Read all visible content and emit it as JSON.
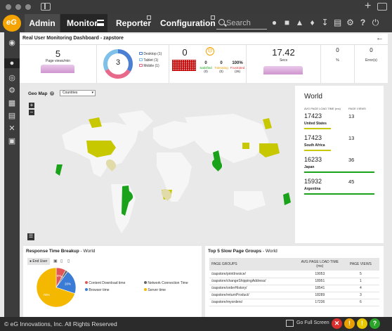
{
  "nav": {
    "admin": "Admin",
    "monitor": "Monitor",
    "reporter": "Reporter",
    "configuration": "Configuration",
    "search_placeholder": "Search"
  },
  "dashboard": {
    "title": "Real User Monitoring Dashboard - zapstore"
  },
  "kpis": {
    "page_views": {
      "value": "5",
      "label": "Page views/min"
    },
    "donut_center": "3",
    "devices": [
      {
        "label": "Desktop",
        "count": "(1)"
      },
      {
        "label": "Tablet",
        "count": "(1)"
      },
      {
        "label": "Mobile",
        "count": "(1)"
      }
    ],
    "apdex": {
      "value": "0"
    },
    "satisfaction": [
      {
        "pct": "0",
        "label": "Satisfied",
        "count": "(0)"
      },
      {
        "pct": "0",
        "label": "Tolerating",
        "count": "(0)"
      },
      {
        "pct": "100%",
        "label": "Frustrated",
        "count": "(26)"
      }
    ],
    "secs": {
      "value": "17.42",
      "label": "Secs"
    },
    "percent": {
      "value": "0",
      "label": "%"
    },
    "errors": {
      "value": "0",
      "label": "Error(s)"
    }
  },
  "geo": {
    "title": "Geo Map",
    "select_value": "Countries",
    "zoom_in": "+",
    "zoom_out": "−"
  },
  "world": {
    "title": "World",
    "col1": "AVG PAGE LOAD TIME (ms)",
    "col2": "PAGE VIEWS",
    "rows": [
      {
        "time": "17423",
        "views": "13",
        "country": "United States",
        "color": "#c8c800"
      },
      {
        "time": "17423",
        "views": "13",
        "country": "South Africa",
        "color": "#c8c800"
      },
      {
        "time": "16233",
        "views": "36",
        "country": "Japan",
        "color": "#1aa31a"
      },
      {
        "time": "15932",
        "views": "45",
        "country": "Argentina",
        "color": "#1aa31a"
      }
    ]
  },
  "response": {
    "title": "Response Time Breakup",
    "suffix": " - World",
    "end_user": "End User",
    "legend": [
      {
        "label": "Content Download time",
        "color": "#e05555"
      },
      {
        "label": "Network Connection Time",
        "color": "#666666"
      },
      {
        "label": "Browser time",
        "color": "#3a7bd5"
      },
      {
        "label": "Server time",
        "color": "#f5b800"
      }
    ],
    "slices": [
      {
        "label": "8%",
        "value": 8,
        "color": "#e05555"
      },
      {
        "label": "2%",
        "value": 2,
        "color": "#666666"
      },
      {
        "label": "20%",
        "value": 20,
        "color": "#3a7bd5"
      },
      {
        "label": "70%",
        "value": 70,
        "color": "#f5b800"
      }
    ]
  },
  "top5": {
    "title": "Top 5 Slow Page Groups",
    "suffix": " - World",
    "headers": [
      "PAGE GROUPS",
      "AVG PAGE LOAD TIME (ms)",
      "PAGE VIEWS"
    ],
    "rows": [
      [
        "/zapstore/printInvoice/",
        "19053",
        "5"
      ],
      [
        "/zapstore/changeShippingAddress/",
        "18951",
        "1"
      ],
      [
        "/zapstore/orderHistory/",
        "18541",
        "4"
      ],
      [
        "/zapstore/returnProduct/",
        "18289",
        "3"
      ],
      [
        "/zapstore/myorders/",
        "17236",
        "6"
      ]
    ]
  },
  "footer": {
    "copyright": "© eG Innovations, Inc. All Rights Reserved",
    "fullscreen": "Go Full Screen"
  }
}
